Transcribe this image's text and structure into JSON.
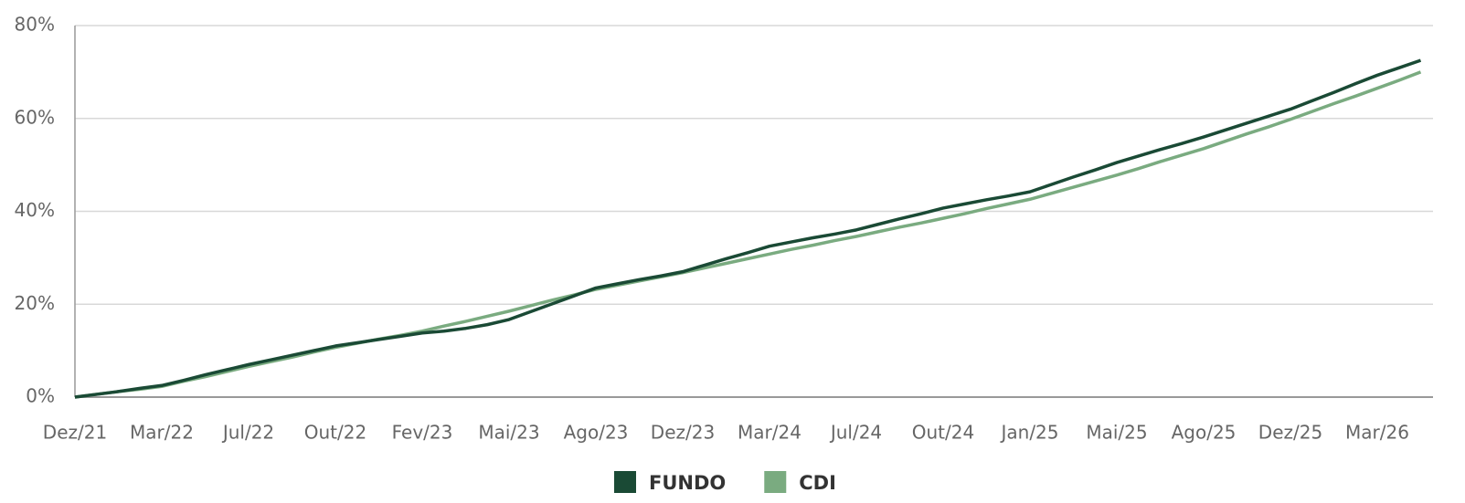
{
  "chart_data": {
    "type": "line",
    "categories": [
      "Dez/21",
      null,
      null,
      null,
      "Mar/22",
      null,
      null,
      null,
      "Jul/22",
      null,
      null,
      null,
      "Out/22",
      null,
      null,
      null,
      "Fev/23",
      null,
      null,
      null,
      "Mai/23",
      null,
      null,
      null,
      "Ago/23",
      null,
      null,
      null,
      "Dez/23",
      null,
      null,
      null,
      "Mar/24",
      null,
      null,
      null,
      "Jul/24",
      null,
      null,
      null,
      "Out/24",
      null,
      null,
      null,
      "Jan/25",
      null,
      null,
      null,
      "Mai/25",
      null,
      null,
      null,
      "Ago/25",
      null,
      null,
      null,
      "Dez/25",
      null,
      null,
      null,
      "Mar/26",
      null,
      null
    ],
    "series": [
      {
        "name": "FUNDO",
        "color": "#1a4a35",
        "values": [
          0,
          0.6,
          1.2,
          1.9,
          2.5,
          3.6,
          4.8,
          5.9,
          7,
          8,
          9,
          10,
          11,
          11.7,
          12.4,
          13.1,
          13.8,
          14.2,
          14.8,
          15.6,
          16.7,
          18.4,
          20.1,
          21.8,
          23.5,
          24.4,
          25.3,
          26.1,
          27,
          28.4,
          29.8,
          31.1,
          32.5,
          33.4,
          34.3,
          35.1,
          36,
          37.2,
          38.4,
          39.5,
          40.7,
          41.6,
          42.5,
          43.3,
          44.2,
          45.8,
          47.4,
          48.9,
          50.5,
          51.9,
          53.3,
          54.6,
          56,
          57.5,
          59,
          60.5,
          62,
          63.8,
          65.6,
          67.5,
          69.3,
          70.9,
          72.5
        ]
      },
      {
        "name": "CDI",
        "color": "#7aab80",
        "values": [
          0,
          0.6,
          1.2,
          1.7,
          2.3,
          3.4,
          4.4,
          5.5,
          6.6,
          7.6,
          8.6,
          9.7,
          10.7,
          11.6,
          12.5,
          13.3,
          14.2,
          15.3,
          16.3,
          17.4,
          18.5,
          19.7,
          20.9,
          22,
          23.2,
          24.1,
          25,
          25.9,
          26.8,
          27.8,
          28.8,
          29.8,
          30.8,
          31.8,
          32.7,
          33.7,
          34.6,
          35.6,
          36.6,
          37.5,
          38.5,
          39.5,
          40.6,
          41.6,
          42.6,
          43.9,
          45.2,
          46.5,
          47.8,
          49.2,
          50.7,
          52.1,
          53.5,
          55.1,
          56.7,
          58.2,
          59.8,
          61.5,
          63.2,
          64.8,
          66.5,
          68.2,
          70
        ]
      }
    ],
    "ylim": [
      0,
      80
    ],
    "yticks": [
      {
        "value": 0,
        "label": "0%"
      },
      {
        "value": 20,
        "label": "20%"
      },
      {
        "value": 40,
        "label": "40%"
      },
      {
        "value": 60,
        "label": "60%"
      },
      {
        "value": 80,
        "label": "80%"
      }
    ],
    "grid": true,
    "legend": "bottom"
  }
}
